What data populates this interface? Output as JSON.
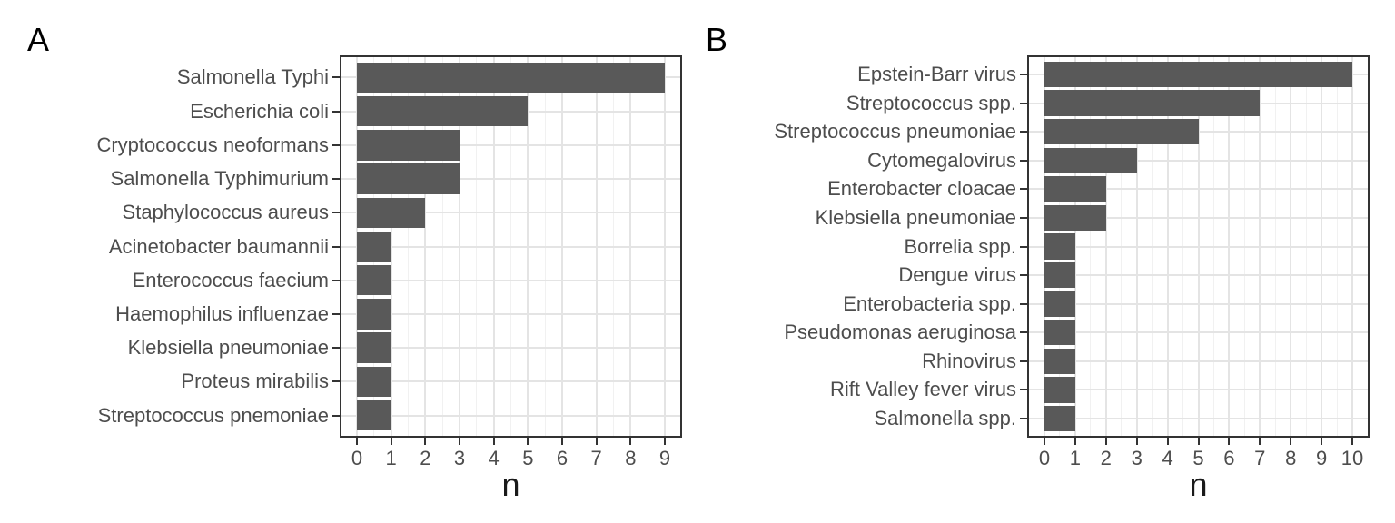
{
  "figure": {
    "colors": {
      "bar": "#595959",
      "panel_border": "#333333",
      "axis_text": "#4d4d4d",
      "axis_title": "#1a1a1a",
      "tick": "#333333",
      "grid_major": "#e4e4e4",
      "grid_minor": "#f1f1f1",
      "background": "#ffffff"
    },
    "panels": [
      {
        "tag": "A",
        "chart_data": {
          "type": "bar",
          "orientation": "horizontal",
          "title": "",
          "xlabel": "n",
          "ylabel": "",
          "xlim": [
            0,
            9
          ],
          "xticks": [
            0,
            1,
            2,
            3,
            4,
            5,
            6,
            7,
            8,
            9
          ],
          "grid": "major+minor",
          "legend": "none",
          "categories": [
            "Salmonella Typhi",
            "Escherichia coli",
            "Cryptococcus neoformans",
            "Salmonella Typhimurium",
            "Staphylococcus aureus",
            "Acinetobacter baumannii",
            "Enterococcus faecium",
            "Haemophilus influenzae",
            "Klebsiella pneumoniae",
            "Proteus mirabilis",
            "Streptococcus pnemoniae"
          ],
          "values": [
            9,
            5,
            3,
            3,
            2,
            1,
            1,
            1,
            1,
            1,
            1
          ]
        }
      },
      {
        "tag": "B",
        "chart_data": {
          "type": "bar",
          "orientation": "horizontal",
          "title": "",
          "xlabel": "n",
          "ylabel": "",
          "xlim": [
            0,
            10
          ],
          "xticks": [
            0,
            1,
            2,
            3,
            4,
            5,
            6,
            7,
            8,
            9,
            10
          ],
          "grid": "major+minor",
          "legend": "none",
          "categories": [
            "Epstein-Barr virus",
            "Streptococcus spp.",
            "Streptococcus pneumoniae",
            "Cytomegalovirus",
            "Enterobacter cloacae",
            "Klebsiella pneumoniae",
            "Borrelia spp.",
            "Dengue virus",
            "Enterobacteria spp.",
            "Pseudomonas aeruginosa",
            "Rhinovirus",
            "Rift Valley fever virus",
            "Salmonella spp."
          ],
          "values": [
            10,
            7,
            5,
            3,
            2,
            2,
            1,
            1,
            1,
            1,
            1,
            1,
            1
          ]
        }
      }
    ]
  }
}
